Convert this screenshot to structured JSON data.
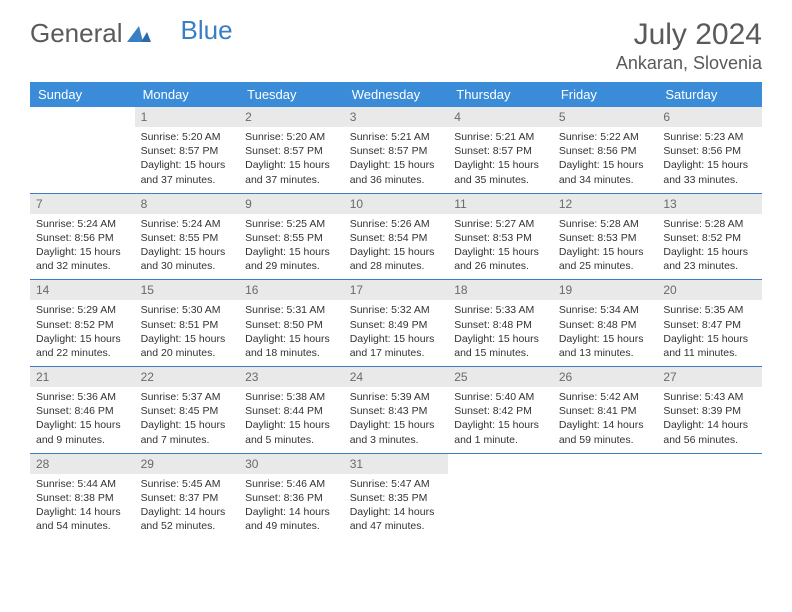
{
  "logo": {
    "part1": "General",
    "part2": "Blue"
  },
  "title": "July 2024",
  "location": "Ankaran, Slovenia",
  "colors": {
    "header_bg": "#3a8bd8",
    "header_text": "#ffffff",
    "daynum_bg": "#e9e9e9",
    "daynum_text": "#6a6a6a",
    "rule": "#3a7fc4",
    "logo_gray": "#5a5a5a",
    "logo_blue": "#3a7fc4"
  },
  "weekdays": [
    "Sunday",
    "Monday",
    "Tuesday",
    "Wednesday",
    "Thursday",
    "Friday",
    "Saturday"
  ],
  "weeks": [
    [
      null,
      {
        "n": "1",
        "sr": "5:20 AM",
        "ss": "8:57 PM",
        "dl": "15 hours and 37 minutes."
      },
      {
        "n": "2",
        "sr": "5:20 AM",
        "ss": "8:57 PM",
        "dl": "15 hours and 37 minutes."
      },
      {
        "n": "3",
        "sr": "5:21 AM",
        "ss": "8:57 PM",
        "dl": "15 hours and 36 minutes."
      },
      {
        "n": "4",
        "sr": "5:21 AM",
        "ss": "8:57 PM",
        "dl": "15 hours and 35 minutes."
      },
      {
        "n": "5",
        "sr": "5:22 AM",
        "ss": "8:56 PM",
        "dl": "15 hours and 34 minutes."
      },
      {
        "n": "6",
        "sr": "5:23 AM",
        "ss": "8:56 PM",
        "dl": "15 hours and 33 minutes."
      }
    ],
    [
      {
        "n": "7",
        "sr": "5:24 AM",
        "ss": "8:56 PM",
        "dl": "15 hours and 32 minutes."
      },
      {
        "n": "8",
        "sr": "5:24 AM",
        "ss": "8:55 PM",
        "dl": "15 hours and 30 minutes."
      },
      {
        "n": "9",
        "sr": "5:25 AM",
        "ss": "8:55 PM",
        "dl": "15 hours and 29 minutes."
      },
      {
        "n": "10",
        "sr": "5:26 AM",
        "ss": "8:54 PM",
        "dl": "15 hours and 28 minutes."
      },
      {
        "n": "11",
        "sr": "5:27 AM",
        "ss": "8:53 PM",
        "dl": "15 hours and 26 minutes."
      },
      {
        "n": "12",
        "sr": "5:28 AM",
        "ss": "8:53 PM",
        "dl": "15 hours and 25 minutes."
      },
      {
        "n": "13",
        "sr": "5:28 AM",
        "ss": "8:52 PM",
        "dl": "15 hours and 23 minutes."
      }
    ],
    [
      {
        "n": "14",
        "sr": "5:29 AM",
        "ss": "8:52 PM",
        "dl": "15 hours and 22 minutes."
      },
      {
        "n": "15",
        "sr": "5:30 AM",
        "ss": "8:51 PM",
        "dl": "15 hours and 20 minutes."
      },
      {
        "n": "16",
        "sr": "5:31 AM",
        "ss": "8:50 PM",
        "dl": "15 hours and 18 minutes."
      },
      {
        "n": "17",
        "sr": "5:32 AM",
        "ss": "8:49 PM",
        "dl": "15 hours and 17 minutes."
      },
      {
        "n": "18",
        "sr": "5:33 AM",
        "ss": "8:48 PM",
        "dl": "15 hours and 15 minutes."
      },
      {
        "n": "19",
        "sr": "5:34 AM",
        "ss": "8:48 PM",
        "dl": "15 hours and 13 minutes."
      },
      {
        "n": "20",
        "sr": "5:35 AM",
        "ss": "8:47 PM",
        "dl": "15 hours and 11 minutes."
      }
    ],
    [
      {
        "n": "21",
        "sr": "5:36 AM",
        "ss": "8:46 PM",
        "dl": "15 hours and 9 minutes."
      },
      {
        "n": "22",
        "sr": "5:37 AM",
        "ss": "8:45 PM",
        "dl": "15 hours and 7 minutes."
      },
      {
        "n": "23",
        "sr": "5:38 AM",
        "ss": "8:44 PM",
        "dl": "15 hours and 5 minutes."
      },
      {
        "n": "24",
        "sr": "5:39 AM",
        "ss": "8:43 PM",
        "dl": "15 hours and 3 minutes."
      },
      {
        "n": "25",
        "sr": "5:40 AM",
        "ss": "8:42 PM",
        "dl": "15 hours and 1 minute."
      },
      {
        "n": "26",
        "sr": "5:42 AM",
        "ss": "8:41 PM",
        "dl": "14 hours and 59 minutes."
      },
      {
        "n": "27",
        "sr": "5:43 AM",
        "ss": "8:39 PM",
        "dl": "14 hours and 56 minutes."
      }
    ],
    [
      {
        "n": "28",
        "sr": "5:44 AM",
        "ss": "8:38 PM",
        "dl": "14 hours and 54 minutes."
      },
      {
        "n": "29",
        "sr": "5:45 AM",
        "ss": "8:37 PM",
        "dl": "14 hours and 52 minutes."
      },
      {
        "n": "30",
        "sr": "5:46 AM",
        "ss": "8:36 PM",
        "dl": "14 hours and 49 minutes."
      },
      {
        "n": "31",
        "sr": "5:47 AM",
        "ss": "8:35 PM",
        "dl": "14 hours and 47 minutes."
      },
      null,
      null,
      null
    ]
  ],
  "labels": {
    "sunrise": "Sunrise:",
    "sunset": "Sunset:",
    "daylight": "Daylight:"
  }
}
